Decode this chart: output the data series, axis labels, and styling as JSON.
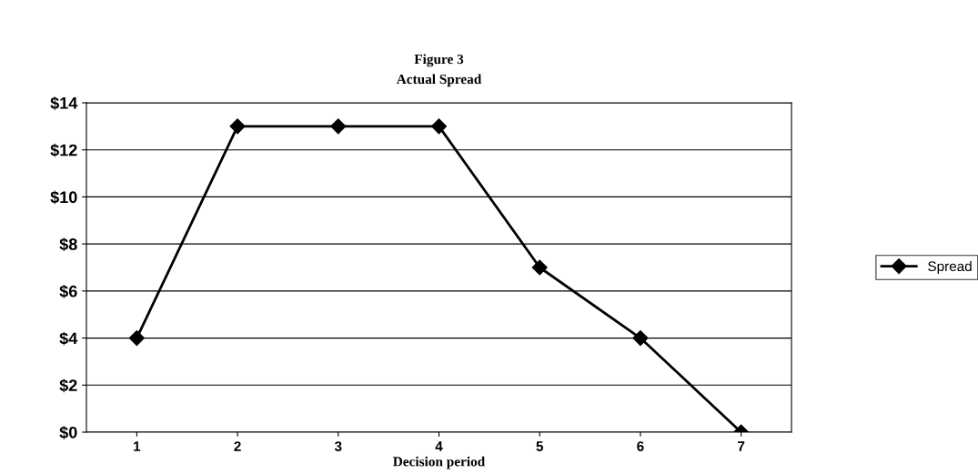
{
  "chart_data": {
    "type": "line",
    "title": "Figure 3",
    "subtitle": "Actual Spread",
    "xlabel": "Decision period",
    "categories": [
      "1",
      "2",
      "3",
      "4",
      "5",
      "6",
      "7"
    ],
    "series": [
      {
        "name": "Spread",
        "color": "#000000",
        "values": [
          4,
          13,
          13,
          13,
          7,
          4,
          0
        ]
      }
    ],
    "ylim": [
      0,
      14
    ],
    "yticks": [
      {
        "value": 0,
        "label": "$0"
      },
      {
        "value": 2,
        "label": "$2"
      },
      {
        "value": 4,
        "label": "$4"
      },
      {
        "value": 6,
        "label": "$6"
      },
      {
        "value": 8,
        "label": "$8"
      },
      {
        "value": 10,
        "label": "$10"
      },
      {
        "value": 12,
        "label": "$12"
      },
      {
        "value": 14,
        "label": "$14"
      }
    ],
    "grid": "y",
    "legend": "right",
    "marker": "diamond",
    "line_style": "solid"
  }
}
